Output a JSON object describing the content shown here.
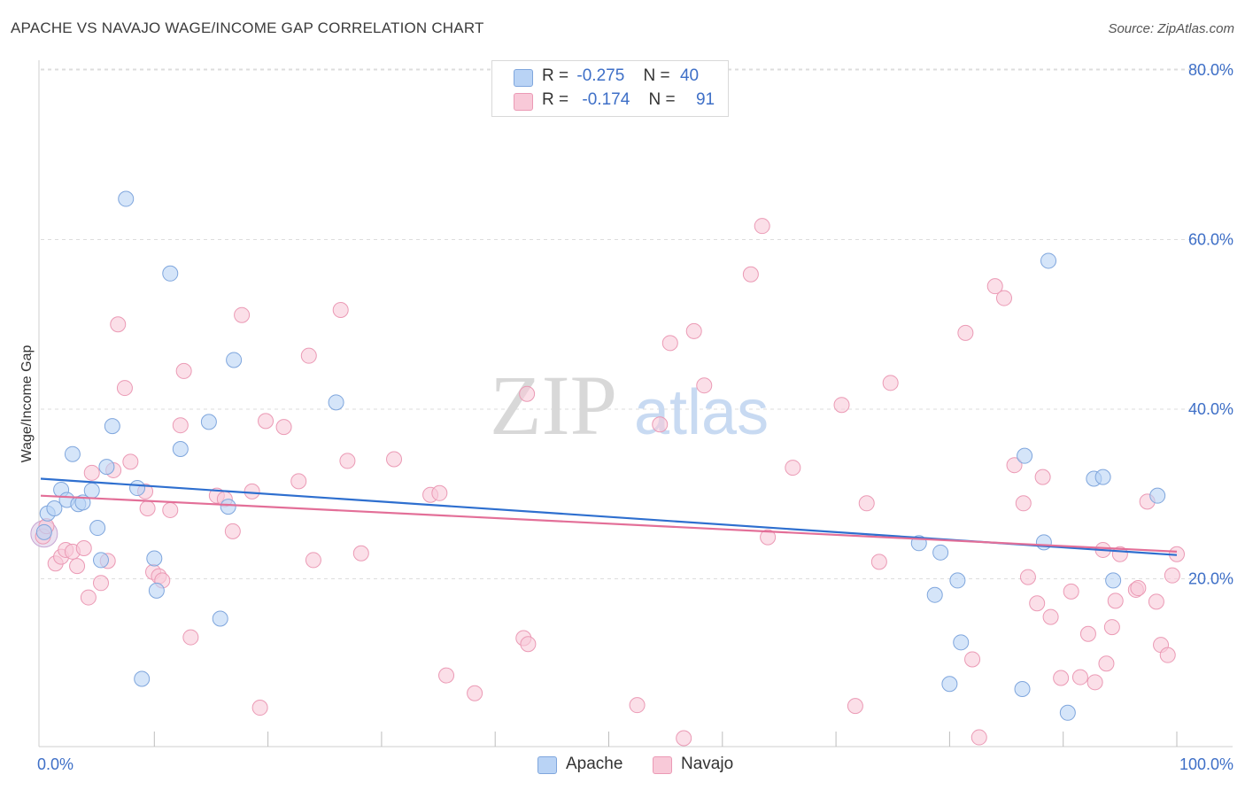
{
  "header": {
    "title": "APACHE VS NAVAJO WAGE/INCOME GAP CORRELATION CHART",
    "source": "Source: ZipAtlas.com"
  },
  "watermark": {
    "zip": "ZIP",
    "atlas": "atlas"
  },
  "legend": {
    "rows": [
      {
        "r_label": "R =",
        "r_value": "-0.275",
        "n_label": "N =",
        "n_value": "40"
      },
      {
        "r_label": "R =",
        "r_value": "-0.174",
        "n_label": "N =",
        "n_value": "91"
      }
    ]
  },
  "colors": {
    "apache_fill": "#b9d3f5",
    "apache_stroke": "#7fa6dd",
    "apache_line": "#2e6fcf",
    "navajo_fill": "#f8c9d8",
    "navajo_stroke": "#eb9ab5",
    "navajo_line": "#e36f98",
    "grid": "#dddddd",
    "tick_label": "#3e6fc7"
  },
  "chart_data": {
    "type": "scatter",
    "title": "APACHE VS NAVAJO WAGE/INCOME GAP CORRELATION CHART",
    "xlabel": "",
    "ylabel": "Wage/Income Gap",
    "xlim": [
      0,
      100
    ],
    "ylim": [
      0,
      85
    ],
    "x_tick_labels": [
      "0.0%",
      "100.0%"
    ],
    "y_ticks": [
      20,
      40,
      60,
      80
    ],
    "y_tick_labels": [
      "20.0%",
      "40.0%",
      "60.0%",
      "80.0%"
    ],
    "grid": true,
    "legend_position": "bottom-center",
    "series": [
      {
        "name": "Apache",
        "r": -0.275,
        "n": 40,
        "trend": {
          "x": [
            0,
            100
          ],
          "y": [
            31.8,
            22.8
          ]
        },
        "points": [
          [
            0.3,
            25.5
          ],
          [
            0.6,
            27.7
          ],
          [
            1.2,
            28.3
          ],
          [
            1.8,
            30.5
          ],
          [
            2.3,
            29.3
          ],
          [
            2.8,
            34.7
          ],
          [
            3.3,
            28.8
          ],
          [
            3.7,
            29.0
          ],
          [
            4.5,
            30.4
          ],
          [
            5.0,
            26.0
          ],
          [
            5.3,
            22.2
          ],
          [
            5.8,
            33.2
          ],
          [
            6.3,
            38.0
          ],
          [
            7.5,
            64.8
          ],
          [
            8.5,
            30.7
          ],
          [
            8.9,
            8.2
          ],
          [
            10.0,
            22.4
          ],
          [
            10.2,
            18.6
          ],
          [
            11.4,
            56.0
          ],
          [
            12.3,
            35.3
          ],
          [
            14.8,
            38.5
          ],
          [
            15.8,
            15.3
          ],
          [
            16.5,
            28.5
          ],
          [
            17.0,
            45.8
          ],
          [
            26.0,
            40.8
          ],
          [
            77.3,
            24.2
          ],
          [
            78.7,
            18.1
          ],
          [
            79.2,
            23.1
          ],
          [
            80.0,
            7.6
          ],
          [
            80.7,
            19.8
          ],
          [
            81.0,
            12.5
          ],
          [
            86.4,
            7.0
          ],
          [
            86.6,
            34.5
          ],
          [
            88.3,
            24.3
          ],
          [
            88.7,
            57.5
          ],
          [
            90.4,
            4.2
          ],
          [
            92.7,
            31.8
          ],
          [
            93.5,
            32.0
          ],
          [
            94.4,
            19.8
          ],
          [
            98.3,
            29.8
          ]
        ]
      },
      {
        "name": "Navajo",
        "r": -0.174,
        "n": 91,
        "trend": {
          "x": [
            0,
            100
          ],
          "y": [
            29.8,
            23.2
          ]
        },
        "points": [
          [
            0.2,
            25.0
          ],
          [
            0.5,
            26.2
          ],
          [
            1.3,
            21.8
          ],
          [
            1.8,
            22.6
          ],
          [
            2.2,
            23.4
          ],
          [
            2.8,
            23.2
          ],
          [
            3.2,
            21.5
          ],
          [
            3.8,
            23.6
          ],
          [
            4.2,
            17.8
          ],
          [
            4.5,
            32.5
          ],
          [
            5.3,
            19.5
          ],
          [
            5.9,
            22.1
          ],
          [
            6.4,
            32.8
          ],
          [
            6.8,
            50.0
          ],
          [
            7.4,
            42.5
          ],
          [
            7.9,
            33.8
          ],
          [
            9.2,
            30.3
          ],
          [
            9.4,
            28.3
          ],
          [
            9.9,
            20.8
          ],
          [
            10.4,
            20.3
          ],
          [
            10.7,
            19.8
          ],
          [
            11.4,
            28.1
          ],
          [
            12.3,
            38.1
          ],
          [
            12.6,
            44.5
          ],
          [
            13.2,
            13.1
          ],
          [
            15.5,
            29.8
          ],
          [
            16.2,
            29.4
          ],
          [
            16.9,
            25.6
          ],
          [
            17.7,
            51.1
          ],
          [
            18.6,
            30.3
          ],
          [
            19.3,
            4.8
          ],
          [
            19.8,
            38.6
          ],
          [
            21.4,
            37.9
          ],
          [
            22.7,
            31.5
          ],
          [
            23.6,
            46.3
          ],
          [
            24.0,
            22.2
          ],
          [
            26.4,
            51.7
          ],
          [
            27.0,
            33.9
          ],
          [
            28.2,
            23.0
          ],
          [
            31.1,
            34.1
          ],
          [
            34.3,
            29.9
          ],
          [
            35.1,
            30.1
          ],
          [
            35.7,
            8.6
          ],
          [
            38.2,
            6.5
          ],
          [
            42.5,
            13.0
          ],
          [
            42.9,
            12.3
          ],
          [
            42.8,
            41.8
          ],
          [
            52.5,
            5.1
          ],
          [
            54.5,
            38.2
          ],
          [
            55.4,
            47.8
          ],
          [
            56.6,
            1.2
          ],
          [
            57.5,
            49.2
          ],
          [
            58.4,
            42.8
          ],
          [
            62.5,
            55.9
          ],
          [
            63.5,
            61.6
          ],
          [
            64.0,
            24.9
          ],
          [
            66.2,
            33.1
          ],
          [
            70.5,
            40.5
          ],
          [
            71.7,
            5.0
          ],
          [
            72.7,
            28.9
          ],
          [
            73.8,
            22.0
          ],
          [
            74.8,
            43.1
          ],
          [
            81.4,
            49.0
          ],
          [
            82.0,
            10.5
          ],
          [
            82.6,
            1.3
          ],
          [
            84.0,
            54.5
          ],
          [
            84.8,
            53.1
          ],
          [
            85.7,
            33.4
          ],
          [
            86.5,
            28.9
          ],
          [
            86.9,
            20.2
          ],
          [
            87.7,
            17.1
          ],
          [
            88.2,
            32.0
          ],
          [
            88.9,
            15.5
          ],
          [
            89.8,
            8.3
          ],
          [
            90.7,
            18.5
          ],
          [
            91.5,
            8.4
          ],
          [
            92.2,
            13.5
          ],
          [
            92.8,
            7.8
          ],
          [
            93.5,
            23.4
          ],
          [
            93.8,
            10.0
          ],
          [
            94.3,
            14.3
          ],
          [
            94.6,
            17.4
          ],
          [
            95.0,
            22.9
          ],
          [
            96.4,
            18.7
          ],
          [
            96.6,
            18.9
          ],
          [
            97.4,
            29.1
          ],
          [
            98.2,
            17.3
          ],
          [
            98.6,
            12.2
          ],
          [
            99.2,
            11.0
          ],
          [
            99.6,
            20.4
          ],
          [
            100.0,
            22.9
          ]
        ]
      }
    ]
  }
}
